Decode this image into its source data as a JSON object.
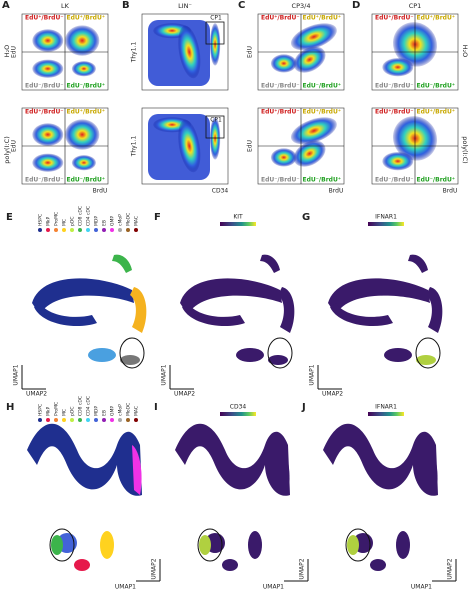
{
  "top_panels": [
    {
      "letter": "A",
      "title": "LK",
      "y_label": "EdU",
      "x_label": "BrdU",
      "quadrants": [
        "EdU⁺/BrdU⁻",
        "EdU⁺/BrdU⁺",
        "EdU⁻/BrdU⁻",
        "EdU⁻/BrdU⁺"
      ]
    },
    {
      "letter": "B",
      "title": "LIN⁻",
      "y_label": "Thy1.1",
      "x_label": "CD34",
      "gate": "CP1"
    },
    {
      "letter": "C",
      "title": "CP3/4",
      "y_label": "EdU",
      "x_label": "BrdU",
      "quadrants": [
        "EdU⁺/BrdU⁻",
        "EdU⁺/BrdU⁺",
        "EdU⁻/BrdU⁻",
        "EdU⁻/BrdU⁺"
      ]
    },
    {
      "letter": "D",
      "title": "CP1",
      "x_label": "BrdU",
      "quadrants": [
        "EdU⁺/BrdU⁻",
        "EdU⁺/BrdU⁺",
        "EdU⁻/BrdU⁻",
        "EdU⁻/BrdU⁺"
      ]
    }
  ],
  "row_labels": [
    "H₂O",
    "poly(I:C)"
  ],
  "umap_panels": [
    {
      "letter": "E",
      "legend": [
        "HSPC",
        "MkP",
        "ProMC",
        "MC",
        "pDC",
        "CD8 cDC",
        "CD4 cDC",
        "MDP",
        "EB",
        "GMP",
        "cMoP",
        "MoDC",
        "MAC"
      ]
    },
    {
      "letter": "F",
      "colorbar": "KIT"
    },
    {
      "letter": "G",
      "colorbar": "IFNAR1"
    },
    {
      "letter": "H",
      "legend": [
        "HSPC",
        "MkP",
        "ProMC",
        "MC",
        "pDC",
        "CD8 cDC",
        "CD4 cDC",
        "MDP",
        "EB",
        "GMP",
        "cMoP",
        "MoDC",
        "MAC"
      ]
    },
    {
      "letter": "I",
      "colorbar": "CD34"
    },
    {
      "letter": "J",
      "colorbar": "IFNAR1"
    }
  ],
  "axis_labels": {
    "umap1": "UMAP1",
    "umap2": "UMAP2"
  }
}
